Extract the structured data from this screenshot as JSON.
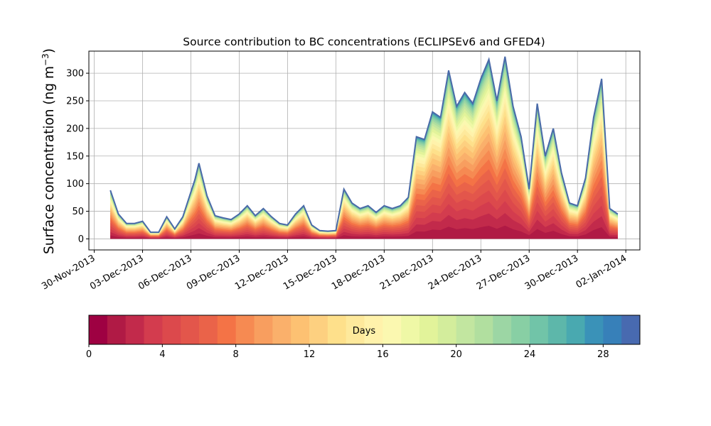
{
  "chart_data": {
    "type": "area",
    "title": "Source contribution to BC concentrations (ECLIPSEv6 and GFED4)",
    "ylabel_main": "Surface concentration (ng m",
    "ylabel_sup": "−3",
    "ylabel_close": ")",
    "xlabel": "",
    "ylim": [
      -20,
      340
    ],
    "y_ticks": [
      0,
      50,
      100,
      150,
      200,
      250,
      300
    ],
    "xlim": [
      "2013-11-29T16:00",
      "2014-01-02T21:00"
    ],
    "x_ticks": [
      {
        "date": "2013-11-30",
        "label": "30-Nov-2013"
      },
      {
        "date": "2013-12-03",
        "label": "03-Dec-2013"
      },
      {
        "date": "2013-12-06",
        "label": "06-Dec-2013"
      },
      {
        "date": "2013-12-09",
        "label": "09-Dec-2013"
      },
      {
        "date": "2013-12-12",
        "label": "12-Dec-2013"
      },
      {
        "date": "2013-12-15",
        "label": "15-Dec-2013"
      },
      {
        "date": "2013-12-18",
        "label": "18-Dec-2013"
      },
      {
        "date": "2013-12-21",
        "label": "21-Dec-2013"
      },
      {
        "date": "2013-12-24",
        "label": "24-Dec-2013"
      },
      {
        "date": "2013-12-27",
        "label": "27-Dec-2013"
      },
      {
        "date": "2013-12-30",
        "label": "30-Dec-2013"
      },
      {
        "date": "2014-01-02",
        "label": "02-Jan-2014"
      }
    ],
    "grid": true,
    "total_series": {
      "x": [
        "2013-12-01T00:00",
        "2013-12-01T12:00",
        "2013-12-02T00:00",
        "2013-12-02T12:00",
        "2013-12-03T00:00",
        "2013-12-03T12:00",
        "2013-12-04T00:00",
        "2013-12-04T12:00",
        "2013-12-05T00:00",
        "2013-12-05T12:00",
        "2013-12-06T00:00",
        "2013-12-06T06:00",
        "2013-12-06T12:00",
        "2013-12-07T00:00",
        "2013-12-07T12:00",
        "2013-12-08T00:00",
        "2013-12-08T12:00",
        "2013-12-09T00:00",
        "2013-12-09T12:00",
        "2013-12-10T00:00",
        "2013-12-10T12:00",
        "2013-12-11T00:00",
        "2013-12-11T12:00",
        "2013-12-12T00:00",
        "2013-12-12T12:00",
        "2013-12-13T00:00",
        "2013-12-13T12:00",
        "2013-12-14T00:00",
        "2013-12-14T12:00",
        "2013-12-15T00:00",
        "2013-12-15T12:00",
        "2013-12-16T00:00",
        "2013-12-16T12:00",
        "2013-12-17T00:00",
        "2013-12-17T12:00",
        "2013-12-18T00:00",
        "2013-12-18T12:00",
        "2013-12-19T00:00",
        "2013-12-19T12:00",
        "2013-12-20T00:00",
        "2013-12-20T12:00",
        "2013-12-21T00:00",
        "2013-12-21T12:00",
        "2013-12-22T00:00",
        "2013-12-22T12:00",
        "2013-12-23T00:00",
        "2013-12-23T12:00",
        "2013-12-24T00:00",
        "2013-12-24T12:00",
        "2013-12-25T00:00",
        "2013-12-25T12:00",
        "2013-12-26T00:00",
        "2013-12-26T12:00",
        "2013-12-27T00:00",
        "2013-12-27T12:00",
        "2013-12-28T00:00",
        "2013-12-28T12:00",
        "2013-12-29T00:00",
        "2013-12-29T12:00",
        "2013-12-30T00:00",
        "2013-12-30T12:00",
        "2013-12-31T00:00",
        "2013-12-31T12:00",
        "2014-01-01T00:00",
        "2014-01-01T12:00"
      ],
      "y": [
        88,
        45,
        28,
        28,
        32,
        12,
        12,
        40,
        18,
        40,
        85,
        107,
        137,
        78,
        42,
        38,
        35,
        45,
        60,
        42,
        55,
        40,
        28,
        25,
        45,
        60,
        25,
        15,
        14,
        15,
        90,
        65,
        55,
        60,
        48,
        60,
        55,
        60,
        75,
        185,
        180,
        230,
        220,
        305,
        240,
        265,
        245,
        290,
        325,
        250,
        330,
        240,
        185,
        90,
        245,
        150,
        200,
        120,
        65,
        60,
        110,
        220,
        290,
        55,
        45
      ]
    },
    "colorbar": {
      "label": "Days",
      "range": [
        0,
        30
      ],
      "ticks": [
        0,
        4,
        8,
        12,
        16,
        20,
        24,
        28
      ],
      "n_levels": 30,
      "colormap": "Spectral",
      "colors": [
        "#9e0142",
        "#b01a45",
        "#c22a4b",
        "#d33c4e",
        "#dc494c",
        "#e3564b",
        "#ea6349",
        "#f47346",
        "#f68a52",
        "#f89e5f",
        "#fab06b",
        "#fdc172",
        "#fdd080",
        "#fee08b",
        "#fee99c",
        "#fff2ab",
        "#fbf8b0",
        "#eff8a6",
        "#e2f39a",
        "#d3ed9c",
        "#c2e6a0",
        "#b1df9f",
        "#9cd6a4",
        "#88cfa4",
        "#71c4a8",
        "#5db7aa",
        "#49a9b0",
        "#3a92b8",
        "#3780b9",
        "#486ab0",
        "#5e4fa2"
      ]
    }
  }
}
